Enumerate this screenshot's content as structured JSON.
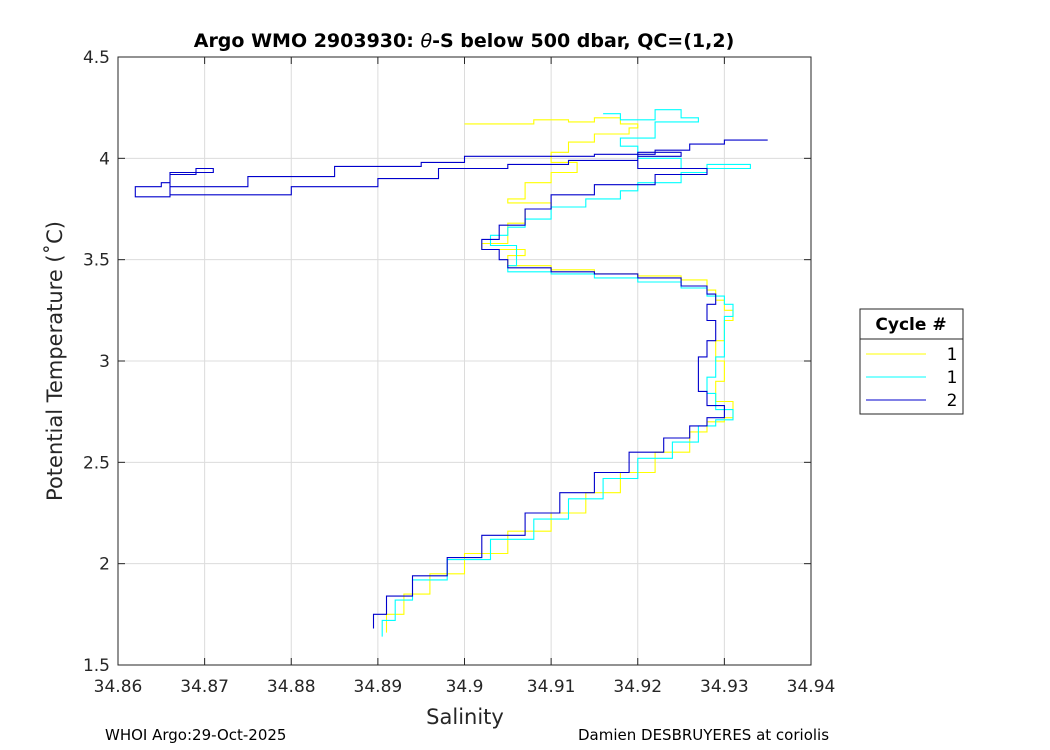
{
  "chart_data": {
    "type": "line",
    "title_prefix": "Argo WMO 2903930: ",
    "title_theta": "θ",
    "title_suffix": "-S below 500 dbar,  QC=(1,2)",
    "xlabel": "Salinity",
    "ylabel": "Potential Temperature (˚C)",
    "xlim": [
      34.86,
      34.94
    ],
    "ylim": [
      1.5,
      4.5
    ],
    "xticks": [
      "34.86",
      "34.87",
      "34.88",
      "34.89",
      "34.9",
      "34.91",
      "34.92",
      "34.93",
      "34.94"
    ],
    "yticks": [
      "1.5",
      "2",
      "2.5",
      "3",
      "3.5",
      "4",
      "4.5"
    ],
    "grid": true,
    "legend": {
      "title": "Cycle #",
      "position": "right",
      "entries": [
        {
          "label": "1",
          "color": "#ffff00"
        },
        {
          "label": "1",
          "color": "#00ffff"
        },
        {
          "label": "2",
          "color": "#0000cc"
        }
      ]
    },
    "series": [
      {
        "name": "1",
        "color": "#ffff00",
        "points": [
          [
            34.9,
            4.17
          ],
          [
            34.905,
            4.17
          ],
          [
            34.908,
            4.19
          ],
          [
            34.912,
            4.18
          ],
          [
            34.915,
            4.2
          ],
          [
            34.918,
            4.17
          ],
          [
            34.92,
            4.15
          ],
          [
            34.919,
            4.12
          ],
          [
            34.915,
            4.08
          ],
          [
            34.912,
            4.03
          ],
          [
            34.91,
            3.98
          ],
          [
            34.913,
            3.93
          ],
          [
            34.91,
            3.88
          ],
          [
            34.907,
            3.8
          ],
          [
            34.905,
            3.78
          ],
          [
            34.91,
            3.75
          ],
          [
            34.907,
            3.68
          ],
          [
            34.905,
            3.62
          ],
          [
            34.905,
            3.58
          ],
          [
            34.902,
            3.55
          ],
          [
            34.907,
            3.52
          ],
          [
            34.905,
            3.47
          ],
          [
            34.91,
            3.45
          ],
          [
            34.915,
            3.43
          ],
          [
            34.92,
            3.42
          ],
          [
            34.925,
            3.4
          ],
          [
            34.928,
            3.35
          ],
          [
            34.929,
            3.3
          ],
          [
            34.93,
            3.25
          ],
          [
            34.931,
            3.2
          ],
          [
            34.93,
            3.1
          ],
          [
            34.929,
            3.0
          ],
          [
            34.93,
            2.9
          ],
          [
            34.929,
            2.8
          ],
          [
            34.931,
            2.72
          ],
          [
            34.93,
            2.7
          ],
          [
            34.928,
            2.65
          ],
          [
            34.926,
            2.55
          ],
          [
            34.922,
            2.45
          ],
          [
            34.918,
            2.35
          ],
          [
            34.914,
            2.25
          ],
          [
            34.91,
            2.16
          ],
          [
            34.905,
            2.05
          ],
          [
            34.9,
            1.95
          ],
          [
            34.896,
            1.85
          ],
          [
            34.893,
            1.75
          ],
          [
            34.891,
            1.66
          ]
        ]
      },
      {
        "name": "1",
        "color": "#00ffff",
        "points": [
          [
            34.916,
            4.22
          ],
          [
            34.918,
            4.19
          ],
          [
            34.922,
            4.24
          ],
          [
            34.925,
            4.2
          ],
          [
            34.927,
            4.18
          ],
          [
            34.922,
            4.1
          ],
          [
            34.918,
            4.06
          ],
          [
            34.92,
            4.0
          ],
          [
            34.925,
            3.95
          ],
          [
            34.933,
            3.97
          ],
          [
            34.928,
            3.93
          ],
          [
            34.925,
            3.88
          ],
          [
            34.92,
            3.84
          ],
          [
            34.918,
            3.8
          ],
          [
            34.914,
            3.76
          ],
          [
            34.91,
            3.7
          ],
          [
            34.907,
            3.66
          ],
          [
            34.905,
            3.62
          ],
          [
            34.903,
            3.57
          ],
          [
            34.906,
            3.52
          ],
          [
            34.906,
            3.47
          ],
          [
            34.905,
            3.44
          ],
          [
            34.91,
            3.43
          ],
          [
            34.915,
            3.41
          ],
          [
            34.92,
            3.39
          ],
          [
            34.925,
            3.36
          ],
          [
            34.928,
            3.32
          ],
          [
            34.93,
            3.28
          ],
          [
            34.931,
            3.22
          ],
          [
            34.93,
            3.12
          ],
          [
            34.93,
            3.02
          ],
          [
            34.929,
            2.92
          ],
          [
            34.928,
            2.84
          ],
          [
            34.929,
            2.76
          ],
          [
            34.931,
            2.71
          ],
          [
            34.929,
            2.68
          ],
          [
            34.927,
            2.6
          ],
          [
            34.924,
            2.52
          ],
          [
            34.92,
            2.42
          ],
          [
            34.916,
            2.32
          ],
          [
            34.912,
            2.22
          ],
          [
            34.908,
            2.12
          ],
          [
            34.903,
            2.02
          ],
          [
            34.898,
            1.92
          ],
          [
            34.894,
            1.82
          ],
          [
            34.892,
            1.72
          ],
          [
            34.8905,
            1.64
          ]
        ]
      },
      {
        "name": "2",
        "color": "#0000cc",
        "points": [
          [
            34.935,
            4.09
          ],
          [
            34.93,
            4.07
          ],
          [
            34.926,
            4.04
          ],
          [
            34.922,
            4.02
          ],
          [
            34.915,
            4.01
          ],
          [
            34.9,
            3.98
          ],
          [
            34.895,
            3.96
          ],
          [
            34.885,
            3.91
          ],
          [
            34.875,
            3.86
          ],
          [
            34.866,
            3.81
          ],
          [
            34.862,
            3.83
          ],
          [
            34.862,
            3.86
          ],
          [
            34.865,
            3.88
          ],
          [
            34.866,
            3.93
          ],
          [
            34.871,
            3.95
          ],
          [
            34.869,
            3.92
          ],
          [
            34.866,
            3.87
          ],
          [
            34.866,
            3.82
          ],
          [
            34.872,
            3.82
          ],
          [
            34.88,
            3.86
          ],
          [
            34.89,
            3.9
          ],
          [
            34.897,
            3.95
          ],
          [
            34.905,
            3.97
          ],
          [
            34.912,
            3.99
          ],
          [
            34.92,
            4.01
          ],
          [
            34.925,
            4.03
          ],
          [
            34.92,
            3.95
          ],
          [
            34.928,
            3.92
          ],
          [
            34.922,
            3.87
          ],
          [
            34.915,
            3.82
          ],
          [
            34.91,
            3.75
          ],
          [
            34.907,
            3.67
          ],
          [
            34.904,
            3.6
          ],
          [
            34.902,
            3.55
          ],
          [
            34.904,
            3.5
          ],
          [
            34.905,
            3.46
          ],
          [
            34.91,
            3.44
          ],
          [
            34.915,
            3.43
          ],
          [
            34.92,
            3.41
          ],
          [
            34.925,
            3.37
          ],
          [
            34.928,
            3.33
          ],
          [
            34.929,
            3.28
          ],
          [
            34.928,
            3.2
          ],
          [
            34.929,
            3.1
          ],
          [
            34.928,
            3.02
          ],
          [
            34.927,
            2.95
          ],
          [
            34.927,
            2.85
          ],
          [
            34.928,
            2.78
          ],
          [
            34.93,
            2.72
          ],
          [
            34.928,
            2.68
          ],
          [
            34.926,
            2.62
          ],
          [
            34.923,
            2.55
          ],
          [
            34.919,
            2.45
          ],
          [
            34.915,
            2.35
          ],
          [
            34.911,
            2.25
          ],
          [
            34.907,
            2.14
          ],
          [
            34.902,
            2.03
          ],
          [
            34.898,
            1.94
          ],
          [
            34.894,
            1.84
          ],
          [
            34.891,
            1.75
          ],
          [
            34.8895,
            1.68
          ]
        ]
      }
    ]
  },
  "footer": {
    "left": "WHOI Argo:29-Oct-2025",
    "right": "Damien DESBRUYERES at coriolis"
  }
}
